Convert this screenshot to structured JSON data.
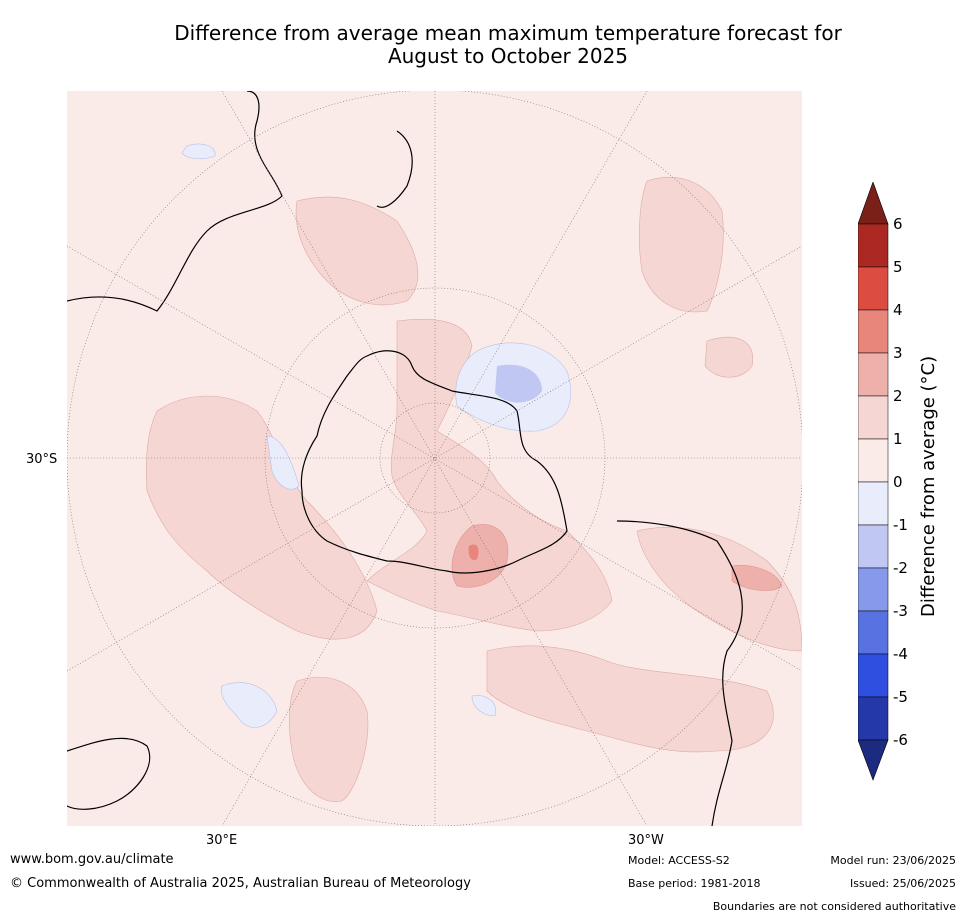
{
  "title": {
    "line1": "Difference from average mean maximum temperature forecast for",
    "line2": "August to October 2025"
  },
  "map": {
    "projection": "south-polar stereographic",
    "graticule_labels": {
      "lat": "30°S",
      "lon_left": "30°E",
      "lon_right": "30°W"
    },
    "fill_color": "#fbebe8"
  },
  "colorbar": {
    "label": "Difference from average ($^\\circ$C)",
    "label_display": "Difference from average (°C)",
    "ticks": [
      "6",
      "5",
      "4",
      "3",
      "2",
      "1",
      "0",
      "-1",
      "-2",
      "-3",
      "-4",
      "-5",
      "-6"
    ],
    "levels": [
      {
        "range": "5 to 6",
        "color": "#ab2823"
      },
      {
        "range": "4 to 5",
        "color": "#dc4c41"
      },
      {
        "range": "3 to 4",
        "color": "#e8867b"
      },
      {
        "range": "2 to 3",
        "color": "#eeb0aa"
      },
      {
        "range": "1 to 2",
        "color": "#f5d6d3"
      },
      {
        "range": "0 to 1",
        "color": "#fbebe8"
      },
      {
        "range": "-1 to 0",
        "color": "#e9ecfa"
      },
      {
        "range": "-2 to -1",
        "color": "#bfc7f2"
      },
      {
        "range": "-3 to -2",
        "color": "#8799ea"
      },
      {
        "range": "-4 to -3",
        "color": "#5872e2"
      },
      {
        "range": "-5 to -4",
        "color": "#2e4fe0"
      },
      {
        "range": "-6 to -5",
        "color": "#2438aa"
      }
    ],
    "over_color": "#7b1f19",
    "under_color": "#1c2b7f"
  },
  "footer": {
    "website": "www.bom.gov.au/climate",
    "copyright": "© Commonwealth of Australia 2025, Australian Bureau of Meteorology",
    "model": "Model: ACCESS-S2",
    "base_period": "Base period: 1981-2018",
    "model_run": "Model run: 23/06/2025",
    "issued": "Issued: 25/06/2025",
    "disclaimer": "Boundaries are not considered authoritative"
  }
}
